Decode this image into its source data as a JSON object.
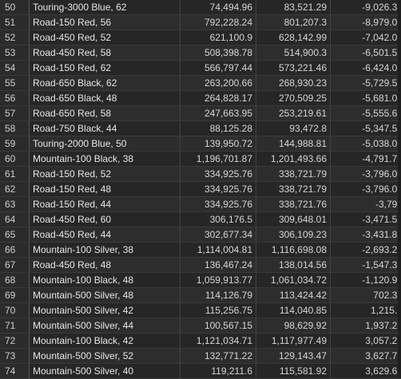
{
  "rows": [
    {
      "n": "50",
      "product": "Touring-3000 Blue, 62",
      "a": "74,494.96",
      "b": "83,521.29",
      "c": "-9,026.33"
    },
    {
      "n": "51",
      "product": "Road-150 Red, 56",
      "a": "792,228.24",
      "b": "801,207.3",
      "c": "-8,979.06"
    },
    {
      "n": "52",
      "product": "Road-450 Red, 52",
      "a": "621,100.9",
      "b": "628,142.99",
      "c": "-7,042.09"
    },
    {
      "n": "53",
      "product": "Road-450 Red, 58",
      "a": "508,398.78",
      "b": "514,900.3",
      "c": "-6,501.52"
    },
    {
      "n": "54",
      "product": "Road-150 Red, 62",
      "a": "566,797.44",
      "b": "573,221.46",
      "c": "-6,424.02"
    },
    {
      "n": "55",
      "product": "Road-650 Black, 62",
      "a": "263,200.66",
      "b": "268,930.23",
      "c": "-5,729.57"
    },
    {
      "n": "56",
      "product": "Road-650 Black, 48",
      "a": "264,828.17",
      "b": "270,509.25",
      "c": "-5,681.08"
    },
    {
      "n": "57",
      "product": "Road-650 Red, 58",
      "a": "247,663.95",
      "b": "253,219.61",
      "c": "-5,555.66"
    },
    {
      "n": "58",
      "product": "Road-750 Black, 44",
      "a": "88,125.28",
      "b": "93,472.8",
      "c": "-5,347.52"
    },
    {
      "n": "59",
      "product": "Touring-2000 Blue, 50",
      "a": "139,950.72",
      "b": "144,988.81",
      "c": "-5,038.09"
    },
    {
      "n": "60",
      "product": "Mountain-100 Black, 38",
      "a": "1,196,701.87",
      "b": "1,201,493.66",
      "c": "-4,791.79"
    },
    {
      "n": "61",
      "product": "Road-150 Red, 52",
      "a": "334,925.76",
      "b": "338,721.79",
      "c": "-3,796.03"
    },
    {
      "n": "62",
      "product": "Road-150 Red, 48",
      "a": "334,925.76",
      "b": "338,721.79",
      "c": "-3,796.03"
    },
    {
      "n": "63",
      "product": "Road-150 Red, 44",
      "a": "334,925.76",
      "b": "338,721.76",
      "c": "-3,796"
    },
    {
      "n": "64",
      "product": "Road-450 Red, 60",
      "a": "306,176.5",
      "b": "309,648.01",
      "c": "-3,471.51"
    },
    {
      "n": "65",
      "product": "Road-450 Red, 44",
      "a": "302,677.34",
      "b": "306,109.23",
      "c": "-3,431.89"
    },
    {
      "n": "66",
      "product": "Mountain-100 Silver, 38",
      "a": "1,114,004.81",
      "b": "1,116,698.08",
      "c": "-2,693.27"
    },
    {
      "n": "67",
      "product": "Road-450 Red, 48",
      "a": "136,467.24",
      "b": "138,014.56",
      "c": "-1,547.32"
    },
    {
      "n": "68",
      "product": "Mountain-100 Black, 48",
      "a": "1,059,913.77",
      "b": "1,061,034.72",
      "c": "-1,120.95"
    },
    {
      "n": "69",
      "product": "Mountain-500 Silver, 48",
      "a": "114,126.79",
      "b": "113,424.42",
      "c": "702.37"
    },
    {
      "n": "70",
      "product": "Mountain-500 Silver, 42",
      "a": "115,256.75",
      "b": "114,040.85",
      "c": "1,215.9"
    },
    {
      "n": "71",
      "product": "Mountain-500 Silver, 44",
      "a": "100,567.15",
      "b": "98,629.92",
      "c": "1,937.23"
    },
    {
      "n": "72",
      "product": "Mountain-100 Black, 42",
      "a": "1,121,034.71",
      "b": "1,117,977.49",
      "c": "3,057.22"
    },
    {
      "n": "73",
      "product": "Mountain-500 Silver, 52",
      "a": "132,771.22",
      "b": "129,143.47",
      "c": "3,627.75"
    },
    {
      "n": "74",
      "product": "Mountain-500 Silver, 40",
      "a": "119,211.6",
      "b": "115,581.92",
      "c": "3,629.68"
    }
  ]
}
